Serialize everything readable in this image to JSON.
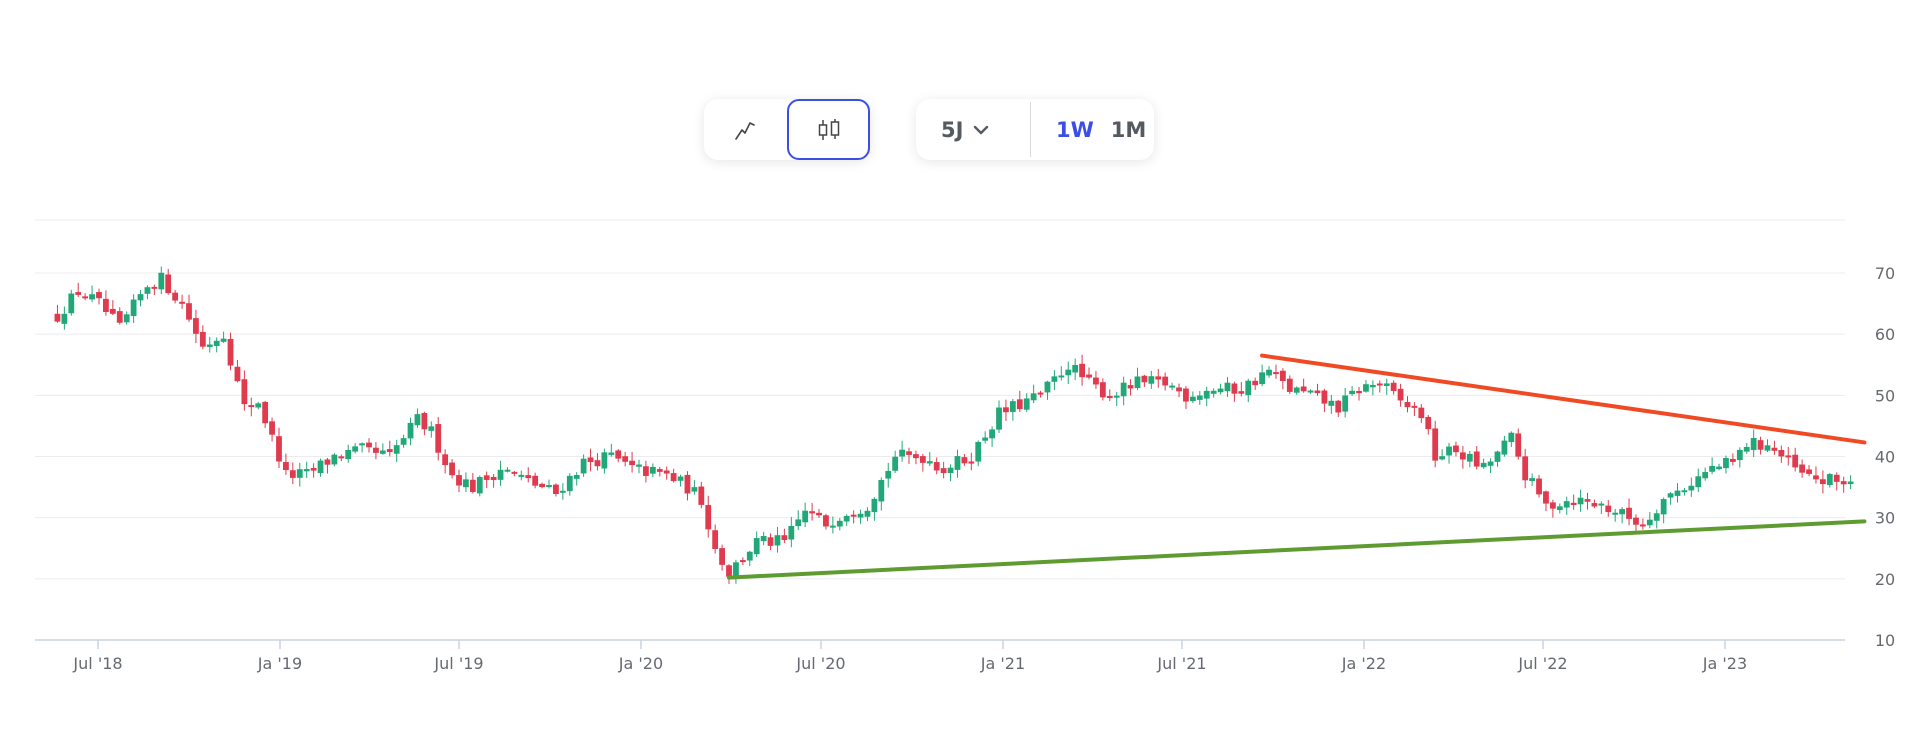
{
  "toolbar": {
    "chart_types": [
      {
        "name": "line",
        "icon": "line-chart-icon",
        "active": false
      },
      {
        "name": "candlestick",
        "icon": "candlestick-icon",
        "active": true
      }
    ],
    "range": {
      "label": "5J",
      "icon": "chevron-down-icon"
    },
    "intervals": [
      {
        "label": "1W",
        "active": true
      },
      {
        "label": "1M",
        "active": false
      }
    ],
    "accent_color": "#3d4ee6"
  },
  "chart_data": {
    "type": "candlestick",
    "x_ticks": [
      "Jul '18",
      "Ja '19",
      "Jul '19",
      "Ja '20",
      "Jul '20",
      "Ja '21",
      "Jul '21",
      "Ja '22",
      "Jul '22",
      "Ja '23"
    ],
    "y_ticks": [
      10,
      20,
      30,
      40,
      50,
      60,
      70
    ],
    "ylim": [
      10,
      80
    ],
    "grid": true,
    "y_axis_position": "right",
    "colors": {
      "up": "#22a878",
      "down": "#e03a4e",
      "resistance": "#f04a25",
      "support": "#5e9b30"
    },
    "ohlc_anchor_closes": [
      [
        "2018-05-21",
        63
      ],
      [
        "2018-06-11",
        67
      ],
      [
        "2018-07-02",
        65
      ],
      [
        "2018-07-23",
        61
      ],
      [
        "2018-08-20",
        68
      ],
      [
        "2018-09-03",
        69
      ],
      [
        "2018-09-24",
        65
      ],
      [
        "2018-10-15",
        58
      ],
      [
        "2018-11-05",
        60
      ],
      [
        "2018-11-26",
        48
      ],
      [
        "2018-12-10",
        49
      ],
      [
        "2019-01-07",
        37
      ],
      [
        "2019-01-28",
        37
      ],
      [
        "2019-02-25",
        40
      ],
      [
        "2019-03-25",
        41
      ],
      [
        "2019-04-22",
        40
      ],
      [
        "2019-05-20",
        46
      ],
      [
        "2019-06-03",
        44
      ],
      [
        "2019-06-24",
        37
      ],
      [
        "2019-07-15",
        35
      ],
      [
        "2019-08-12",
        38
      ],
      [
        "2019-09-09",
        36
      ],
      [
        "2019-10-07",
        34
      ],
      [
        "2019-11-04",
        39
      ],
      [
        "2019-12-02",
        40
      ],
      [
        "2019-12-23",
        38
      ],
      [
        "2020-01-27",
        37
      ],
      [
        "2020-02-17",
        35
      ],
      [
        "2020-03-02",
        33
      ],
      [
        "2020-03-16",
        25
      ],
      [
        "2020-03-30",
        21
      ],
      [
        "2020-04-27",
        26
      ],
      [
        "2020-05-25",
        26
      ],
      [
        "2020-06-15",
        31
      ],
      [
        "2020-07-06",
        29
      ],
      [
        "2020-07-27",
        31
      ],
      [
        "2020-08-17",
        32
      ],
      [
        "2020-09-14",
        40
      ],
      [
        "2020-10-12",
        40
      ],
      [
        "2020-11-02",
        38
      ],
      [
        "2020-11-30",
        40
      ],
      [
        "2020-12-28",
        47
      ],
      [
        "2021-02-08",
        50
      ],
      [
        "2021-03-08",
        55
      ],
      [
        "2021-03-29",
        52
      ],
      [
        "2021-04-19",
        50
      ],
      [
        "2021-05-17",
        52
      ],
      [
        "2021-06-14",
        52
      ],
      [
        "2021-07-05",
        50
      ],
      [
        "2021-08-02",
        51
      ],
      [
        "2021-08-30",
        51
      ],
      [
        "2021-09-27",
        54
      ],
      [
        "2021-10-18",
        51
      ],
      [
        "2021-11-08",
        50
      ],
      [
        "2021-12-06",
        48
      ],
      [
        "2021-12-27",
        51
      ],
      [
        "2022-01-17",
        52
      ],
      [
        "2022-02-07",
        49
      ],
      [
        "2022-02-28",
        47
      ],
      [
        "2022-03-14",
        40
      ],
      [
        "2022-04-04",
        41
      ],
      [
        "2022-05-02",
        38
      ],
      [
        "2022-05-30",
        43
      ],
      [
        "2022-06-13",
        37
      ],
      [
        "2022-07-04",
        32
      ],
      [
        "2022-08-01",
        33
      ],
      [
        "2022-08-29",
        32
      ],
      [
        "2022-09-26",
        30
      ],
      [
        "2022-10-10",
        29
      ],
      [
        "2022-10-31",
        33
      ],
      [
        "2022-11-21",
        35
      ],
      [
        "2022-12-19",
        38
      ],
      [
        "2023-01-09",
        39
      ],
      [
        "2023-01-23",
        42
      ],
      [
        "2023-02-13",
        42
      ],
      [
        "2023-03-06",
        39
      ],
      [
        "2023-03-20",
        37
      ],
      [
        "2023-04-10",
        36
      ],
      [
        "2023-05-08",
        36
      ]
    ],
    "trendlines": [
      {
        "type": "resistance",
        "start": [
          "2021-09-20",
          56.5
        ],
        "end": [
          "2023-05-22",
          42.3
        ]
      },
      {
        "type": "support",
        "start": [
          "2020-03-30",
          20.2
        ],
        "end": [
          "2023-05-22",
          29.4
        ]
      }
    ]
  }
}
